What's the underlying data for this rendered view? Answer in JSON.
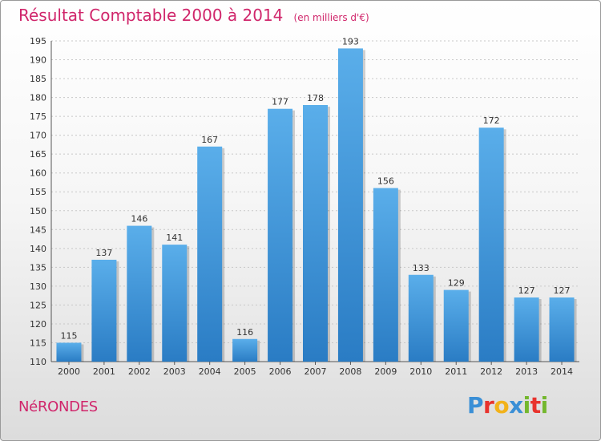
{
  "header": {
    "title": "Résultat Comptable 2000 à 2014",
    "unit": "(en milliers d'€)"
  },
  "footer": {
    "commune": "NéRONDES",
    "logo_text": "Proxiti"
  },
  "colors": {
    "title": "#d0266b",
    "bar_top": "#5aaeea",
    "bar_bottom": "#2a7cc4",
    "grid": "#c8c8c8"
  },
  "chart_data": {
    "type": "bar",
    "title": "Résultat Comptable 2000 à 2014",
    "subtitle": "(en milliers d'€)",
    "xlabel": "",
    "ylabel": "",
    "categories": [
      "2000",
      "2001",
      "2002",
      "2003",
      "2004",
      "2005",
      "2006",
      "2007",
      "2008",
      "2009",
      "2010",
      "2011",
      "2012",
      "2013",
      "2014"
    ],
    "values": [
      115,
      137,
      146,
      141,
      167,
      116,
      177,
      178,
      193,
      156,
      133,
      129,
      172,
      127,
      127
    ],
    "ylim": [
      110,
      195
    ],
    "yticks": [
      110,
      115,
      120,
      125,
      130,
      135,
      140,
      145,
      150,
      155,
      160,
      165,
      170,
      175,
      180,
      185,
      190,
      195
    ],
    "grid": "horizontal dashed",
    "data_labels": true
  }
}
